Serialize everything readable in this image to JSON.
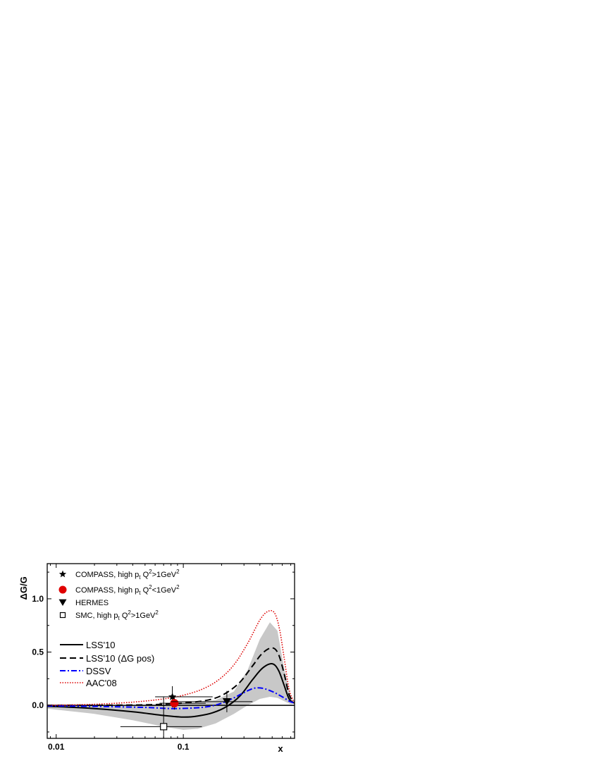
{
  "chart_data": {
    "type": "line",
    "title": "",
    "ylabel": "ΔG/G",
    "xlabel": "x",
    "xscale": "log",
    "xlim": [
      0.0085,
      0.75
    ],
    "ylim": [
      -0.31,
      1.33
    ],
    "x_ticks": [
      {
        "value": 0.01,
        "label": "0.01"
      },
      {
        "value": 0.1,
        "label": "0.1"
      }
    ],
    "y_ticks": [
      {
        "value": 0.0,
        "label": "0.0"
      },
      {
        "value": 0.5,
        "label": "0.5"
      },
      {
        "value": 1.0,
        "label": "1.0"
      }
    ],
    "zero_line": true,
    "grid": false,
    "band": {
      "color": "#c8c8c8",
      "x": [
        0.0085,
        0.01,
        0.02,
        0.04,
        0.07,
        0.1,
        0.13,
        0.18,
        0.25,
        0.32,
        0.4,
        0.48,
        0.55,
        0.62,
        0.7,
        0.75
      ],
      "upper": [
        -0.005,
        -0.004,
        0.0,
        0.005,
        0.01,
        0.015,
        0.025,
        0.05,
        0.13,
        0.33,
        0.62,
        0.78,
        0.7,
        0.35,
        0.07,
        0.02
      ],
      "lower": [
        -0.03,
        -0.04,
        -0.08,
        -0.14,
        -0.2,
        -0.23,
        -0.22,
        -0.17,
        -0.08,
        0.0,
        0.06,
        0.08,
        0.07,
        0.04,
        0.01,
        0.02
      ]
    },
    "series": [
      {
        "name": "LSS'10",
        "style": "solid",
        "color": "#000000",
        "x": [
          0.0085,
          0.01,
          0.02,
          0.04,
          0.07,
          0.1,
          0.13,
          0.17,
          0.22,
          0.28,
          0.35,
          0.42,
          0.5,
          0.56,
          0.62,
          0.68,
          0.75
        ],
        "y": [
          -0.01,
          -0.012,
          -0.03,
          -0.06,
          -0.095,
          -0.11,
          -0.1,
          -0.07,
          -0.01,
          0.09,
          0.24,
          0.35,
          0.39,
          0.33,
          0.19,
          0.06,
          0.02
        ]
      },
      {
        "name": "LSS'10 (ΔG pos)",
        "style": "dashed",
        "color": "#000000",
        "x": [
          0.0085,
          0.02,
          0.05,
          0.08,
          0.12,
          0.17,
          0.22,
          0.28,
          0.35,
          0.42,
          0.5,
          0.56,
          0.62,
          0.68,
          0.75
        ],
        "y": [
          0.0,
          0.0,
          0.005,
          0.015,
          0.03,
          0.06,
          0.12,
          0.22,
          0.37,
          0.49,
          0.54,
          0.48,
          0.3,
          0.1,
          0.02
        ]
      },
      {
        "name": "DSSV",
        "style": "dashdot",
        "color": "#0000ff",
        "x": [
          0.0085,
          0.02,
          0.05,
          0.08,
          0.12,
          0.16,
          0.2,
          0.25,
          0.3,
          0.36,
          0.42,
          0.5,
          0.56,
          0.62,
          0.68,
          0.75
        ],
        "y": [
          -0.005,
          -0.01,
          -0.02,
          -0.03,
          -0.025,
          -0.01,
          0.02,
          0.07,
          0.12,
          0.16,
          0.16,
          0.13,
          0.1,
          0.07,
          0.04,
          0.02
        ]
      },
      {
        "name": "AAC'08",
        "style": "dotted",
        "color": "#dd0000",
        "x": [
          0.0085,
          0.02,
          0.04,
          0.07,
          0.1,
          0.14,
          0.19,
          0.25,
          0.32,
          0.4,
          0.46,
          0.52,
          0.57,
          0.62,
          0.68,
          0.75
        ],
        "y": [
          0.0,
          0.01,
          0.03,
          0.06,
          0.095,
          0.15,
          0.24,
          0.38,
          0.58,
          0.8,
          0.88,
          0.87,
          0.72,
          0.45,
          0.15,
          0.02
        ]
      }
    ],
    "points": [
      {
        "name": "COMPASS, high p",
        "sub": "t",
        "mid": " Q",
        "sup1": "2",
        "rest": ">1GeV",
        "sup2": "2",
        "marker": "star",
        "color": "#000000",
        "x": 0.082,
        "y": 0.08,
        "xlo": 0.06,
        "xhi": 0.17,
        "err": 0.1
      },
      {
        "name": "COMPASS, high p",
        "sub": "t",
        "mid": " Q",
        "sup1": "2",
        "rest": "<1GeV",
        "sup2": "2",
        "marker": "circle",
        "color": "#e00000",
        "x": 0.085,
        "y": 0.02,
        "xlo": 0.065,
        "xhi": 0.15,
        "err": 0.06
      },
      {
        "name": "HERMES",
        "sub": "",
        "mid": "",
        "sup1": "",
        "rest": "",
        "sup2": "",
        "marker": "triangle-down",
        "color": "#000000",
        "x": 0.22,
        "y": 0.035,
        "xlo": 0.08,
        "xhi": 0.35,
        "err": 0.1
      },
      {
        "name": "SMC, high p",
        "sub": "t",
        "mid": " Q",
        "sup1": "2",
        "rest": ">1GeV",
        "sup2": "2",
        "marker": "square-open",
        "color": "#000000",
        "x": 0.07,
        "y": -0.2,
        "xlo": 0.032,
        "xhi": 0.14,
        "err": 0.28
      }
    ]
  }
}
